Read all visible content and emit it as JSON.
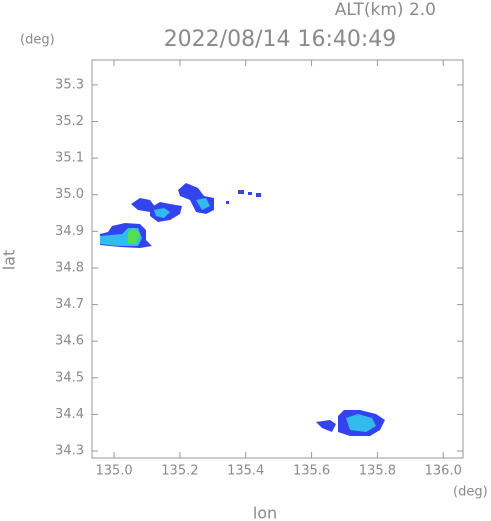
{
  "chart_data": {
    "type": "map",
    "title": "2022/08/14 16:40:49",
    "subtitle": "ALT(km) 2.0",
    "x_label": "lon",
    "y_label": "lat",
    "x_unit": "(deg)",
    "y_unit": "(deg)",
    "xlim": [
      134.933,
      136.06
    ],
    "ylim": [
      34.281,
      35.368
    ],
    "xticks": [
      {
        "value": 135,
        "label": "135.0"
      },
      {
        "value": 135.2,
        "label": "135.2"
      },
      {
        "value": 135.4,
        "label": "135.4"
      },
      {
        "value": 135.6,
        "label": "135.6"
      },
      {
        "value": 135.8,
        "label": "135.8"
      },
      {
        "value": 136,
        "label": "136.0"
      }
    ],
    "yticks": [
      34.3,
      34.4,
      34.5,
      34.6,
      34.7,
      34.8,
      34.9,
      {
        "value": 35,
        "label": "35.0"
      },
      35.1,
      35.2,
      35.3
    ]
  }
}
